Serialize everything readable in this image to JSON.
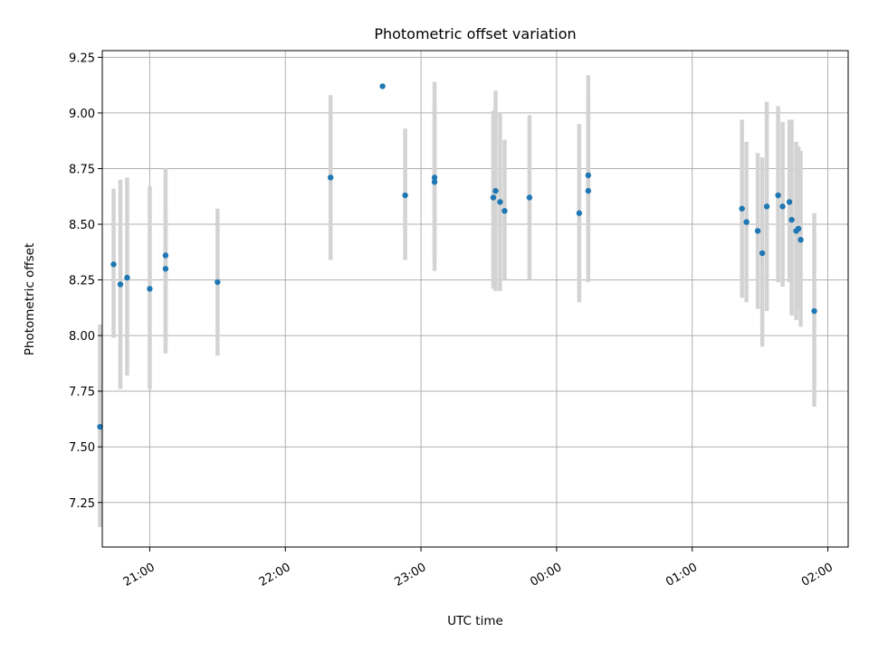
{
  "chart_data": {
    "type": "scatter",
    "title": "Photometric offset variation",
    "xlabel": "UTC time",
    "ylabel": "Photometric offset",
    "x_unit": "UTC clock time (hh:mm, evening into next morning)",
    "xlim": [
      "20:39",
      "02:09"
    ],
    "ylim": [
      7.05,
      9.28
    ],
    "x_ticks": [
      "21:00",
      "22:00",
      "23:00",
      "00:00",
      "01:00",
      "02:00"
    ],
    "y_ticks": [
      7.25,
      7.5,
      7.75,
      8.0,
      8.25,
      8.5,
      8.75,
      9.0,
      9.25
    ],
    "grid": true,
    "colors": {
      "points": "#1f77b4",
      "error_bars": "#d3d3d3",
      "grid": "#b0b0b0"
    },
    "points": [
      {
        "t": "20:38",
        "y": 7.59,
        "lo": 7.14,
        "hi": 8.05
      },
      {
        "t": "20:44",
        "y": 8.32,
        "lo": 7.99,
        "hi": 8.66
      },
      {
        "t": "20:47",
        "y": 8.23,
        "lo": 7.76,
        "hi": 8.7
      },
      {
        "t": "20:50",
        "y": 8.26,
        "lo": 7.82,
        "hi": 8.71
      },
      {
        "t": "21:00",
        "y": 8.21,
        "lo": 7.76,
        "hi": 8.67
      },
      {
        "t": "21:07",
        "y": 8.3,
        "lo": 7.92,
        "hi": 8.56
      },
      {
        "t": "21:07",
        "y": 8.36,
        "lo": 7.97,
        "hi": 8.75
      },
      {
        "t": "21:30",
        "y": 8.24,
        "lo": 7.91,
        "hi": 8.57
      },
      {
        "t": "22:20",
        "y": 8.71,
        "lo": 8.34,
        "hi": 9.08
      },
      {
        "t": "22:43",
        "y": 9.12,
        "lo": 9.12,
        "hi": 9.12
      },
      {
        "t": "22:53",
        "y": 8.63,
        "lo": 8.34,
        "hi": 8.93
      },
      {
        "t": "23:06",
        "y": 8.69,
        "lo": 8.34,
        "hi": 9.05
      },
      {
        "t": "23:06",
        "y": 8.71,
        "lo": 8.29,
        "hi": 9.14
      },
      {
        "t": "23:32",
        "y": 8.62,
        "lo": 8.21,
        "hi": 9.01
      },
      {
        "t": "23:33",
        "y": 8.65,
        "lo": 8.2,
        "hi": 9.1
      },
      {
        "t": "23:35",
        "y": 8.6,
        "lo": 8.2,
        "hi": 9.0
      },
      {
        "t": "23:37",
        "y": 8.56,
        "lo": 8.25,
        "hi": 8.88
      },
      {
        "t": "23:48",
        "y": 8.62,
        "lo": 8.25,
        "hi": 8.99
      },
      {
        "t": "00:10",
        "y": 8.55,
        "lo": 8.15,
        "hi": 8.95
      },
      {
        "t": "00:14",
        "y": 8.72,
        "lo": 8.28,
        "hi": 9.17
      },
      {
        "t": "00:14",
        "y": 8.65,
        "lo": 8.24,
        "hi": 9.06
      },
      {
        "t": "01:22",
        "y": 8.57,
        "lo": 8.17,
        "hi": 8.97
      },
      {
        "t": "01:24",
        "y": 8.51,
        "lo": 8.15,
        "hi": 8.87
      },
      {
        "t": "01:29",
        "y": 8.47,
        "lo": 8.12,
        "hi": 8.82
      },
      {
        "t": "01:31",
        "y": 8.37,
        "lo": 7.95,
        "hi": 8.8
      },
      {
        "t": "01:33",
        "y": 8.58,
        "lo": 8.11,
        "hi": 9.05
      },
      {
        "t": "01:38",
        "y": 8.63,
        "lo": 8.24,
        "hi": 9.03
      },
      {
        "t": "01:40",
        "y": 8.58,
        "lo": 8.22,
        "hi": 8.96
      },
      {
        "t": "01:43",
        "y": 8.6,
        "lo": 8.24,
        "hi": 8.97
      },
      {
        "t": "01:44",
        "y": 8.52,
        "lo": 8.09,
        "hi": 8.97
      },
      {
        "t": "01:46",
        "y": 8.47,
        "lo": 8.07,
        "hi": 8.87
      },
      {
        "t": "01:47",
        "y": 8.48,
        "lo": 8.12,
        "hi": 8.85
      },
      {
        "t": "01:48",
        "y": 8.43,
        "lo": 8.04,
        "hi": 8.83
      },
      {
        "t": "01:54",
        "y": 8.11,
        "lo": 7.68,
        "hi": 8.55
      }
    ]
  }
}
